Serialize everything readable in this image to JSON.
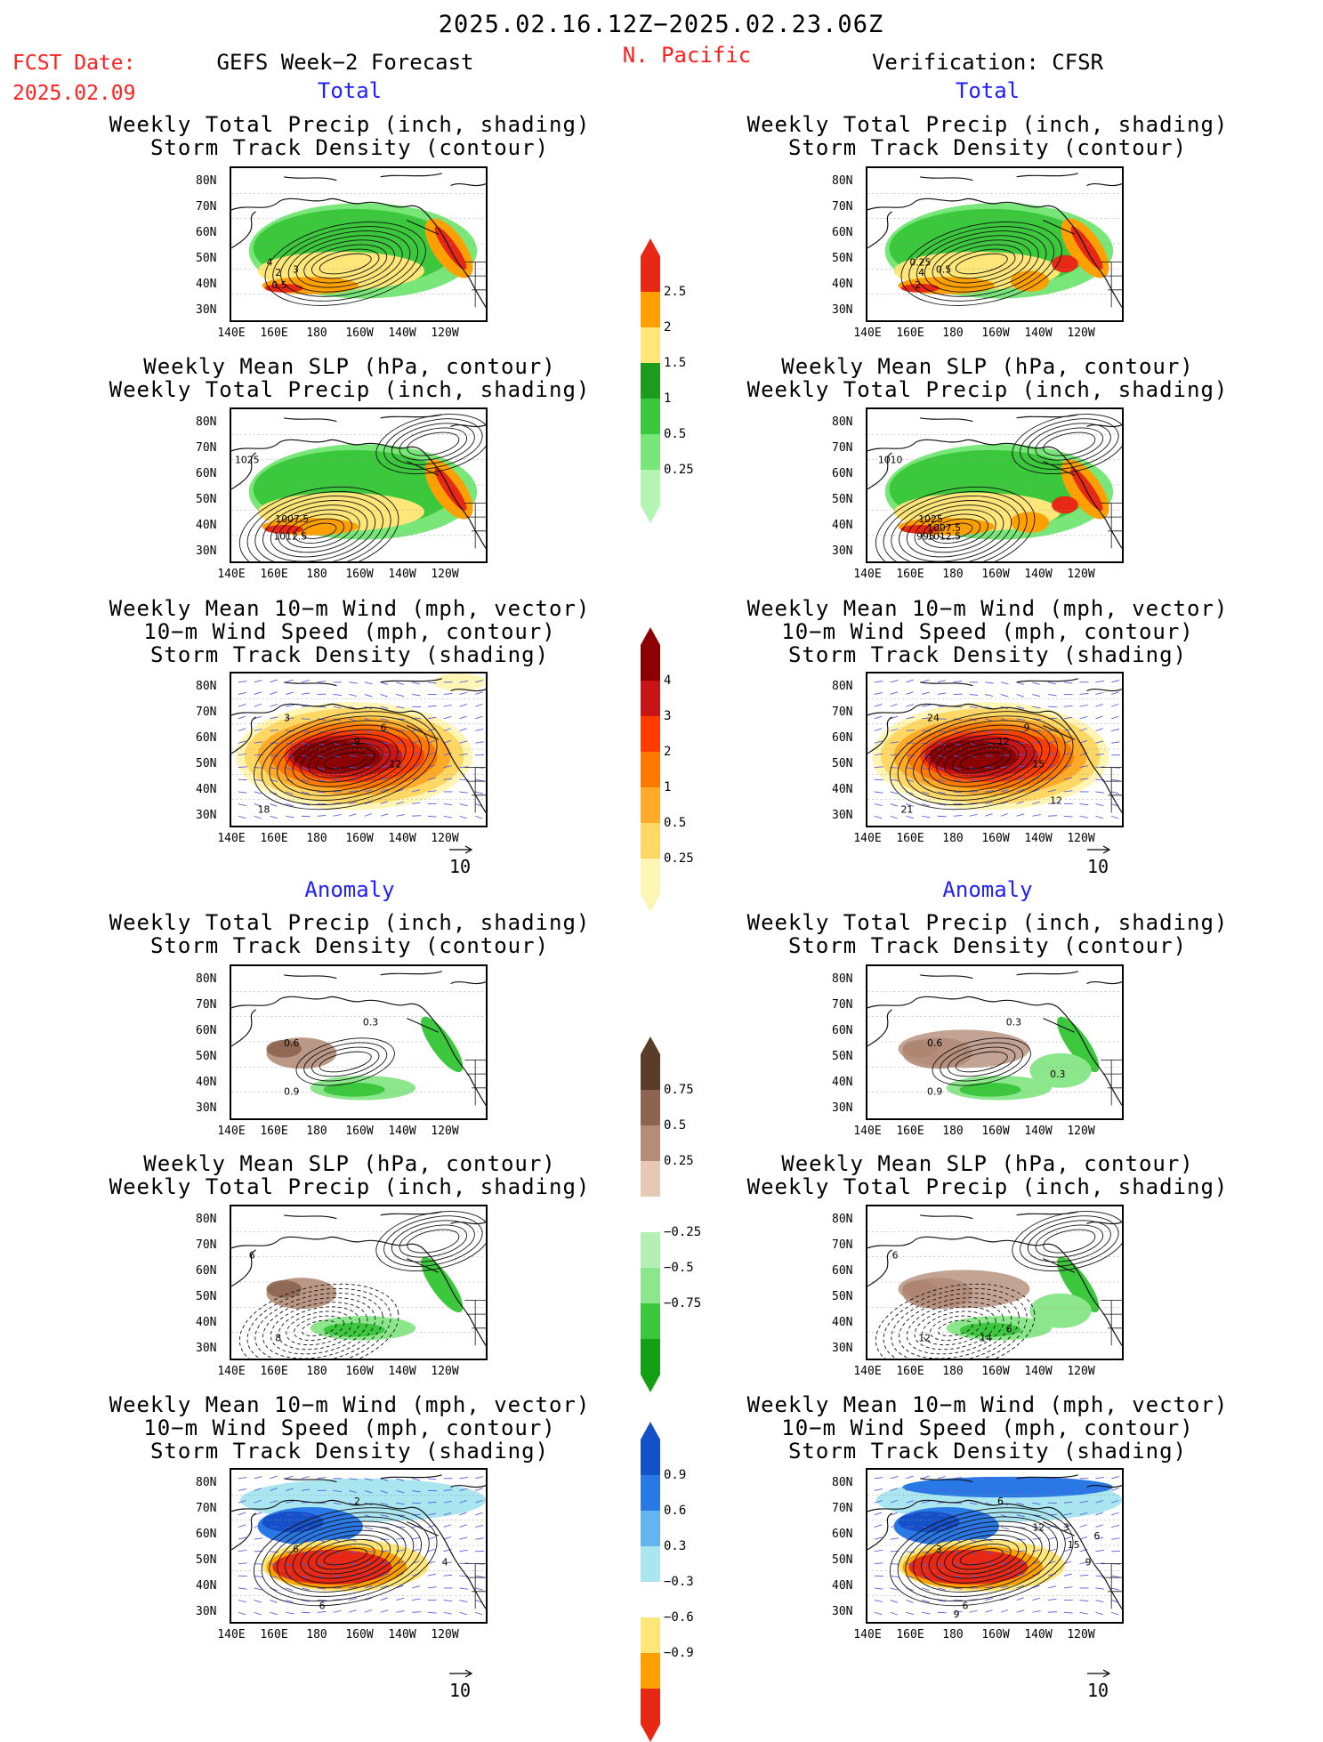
{
  "header": {
    "period": "2025.02.16.12Z−2025.02.23.06Z",
    "fcst_label": "FCST Date:",
    "fcst_date": "2025.02.09",
    "left_title": "GEFS Week−2 Forecast",
    "region": "N. Pacific",
    "right_title": "Verification: CFSR"
  },
  "sections": {
    "total": "Total",
    "anomaly": "Anomaly"
  },
  "panel_titles": {
    "precip_track": [
      "Weekly Total Precip (inch, shading)",
      "Storm Track Density (contour)"
    ],
    "slp_precip": [
      "Weekly Mean SLP (hPa, contour)",
      "Weekly Total Precip (inch, shading)"
    ],
    "wind_track": [
      "Weekly Mean 10−m Wind (mph, vector)",
      "10−m Wind Speed (mph, contour)",
      "Storm Track Density (shading)"
    ]
  },
  "axes": {
    "lat": [
      "80N",
      "70N",
      "60N",
      "50N",
      "40N",
      "30N"
    ],
    "lon": [
      "140E",
      "160E",
      "180",
      "160W",
      "140W",
      "120W"
    ]
  },
  "vector_ref": "10",
  "colorbars": {
    "precip_total": {
      "levels": [
        "0.25",
        "0.5",
        "1",
        "1.5",
        "2",
        "2.5"
      ],
      "colors": [
        "#b4f5b4",
        "#78e678",
        "#3cc83c",
        "#1e9b1e",
        "#ffe678",
        "#ffa000",
        "#e62814"
      ]
    },
    "track_total": {
      "levels": [
        "0.25",
        "0.5",
        "1",
        "2",
        "3",
        "4"
      ],
      "colors": [
        "#fff5b4",
        "#ffd764",
        "#ffaa28",
        "#ff7800",
        "#ff3c00",
        "#c81414",
        "#8c0000"
      ]
    },
    "precip_anom": {
      "levels": [
        "0.75",
        "0.5",
        "0.25",
        "−0.25",
        "−0.5",
        "−0.75"
      ],
      "colors": [
        "#14a014",
        "#3cc83c",
        "#8ce68c",
        "#b4f0b4",
        "#ffffff",
        "#e6c8b4",
        "#b48c78",
        "#8c6450",
        "#5a3c28"
      ]
    },
    "track_anom": {
      "levels": [
        "0.9",
        "0.6",
        "0.3",
        "−0.3",
        "−0.6",
        "−0.9"
      ],
      "colors": [
        "#e62814",
        "#ffa000",
        "#ffe678",
        "#ffffff",
        "#aae6f0",
        "#64b4f0",
        "#2878e6",
        "#1450c8"
      ]
    }
  },
  "map_labels": {
    "L_precip_track": [
      "4",
      "2",
      "3",
      "0.5"
    ],
    "R_precip_track": [
      "0.25",
      "4",
      "0.5",
      "2"
    ],
    "L_slp_precip": [
      "1025",
      "1007.5",
      "1012.5"
    ],
    "R_slp_precip": [
      "1010",
      "1025",
      "995",
      "1007.5",
      "1012.5"
    ],
    "L_wind_track": [
      "9",
      "6",
      "12",
      "18",
      "3"
    ],
    "R_wind_track": [
      "12",
      "9",
      "15",
      "21",
      "24",
      "12"
    ],
    "L_precip_track_anom": [
      "0.3",
      "0.6",
      "0.9"
    ],
    "R_precip_track_anom": [
      "0.3",
      "0.6",
      "0.9",
      "0.3"
    ],
    "L_slp_precip_anom": [
      "6",
      "8"
    ],
    "R_slp_precip_anom": [
      "6",
      "12",
      "14",
      "6"
    ],
    "L_wind_track_anom": [
      "2",
      "6",
      "4",
      "6"
    ],
    "R_wind_track_anom": [
      "6",
      "3",
      "9",
      "6",
      "9",
      "12",
      "3",
      "15",
      "6"
    ]
  }
}
